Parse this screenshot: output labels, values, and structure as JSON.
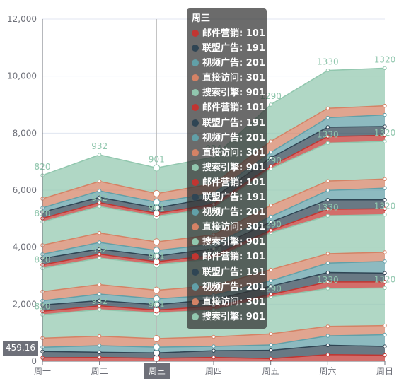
{
  "colors": [
    "#c23531",
    "#2f4554",
    "#61a0a8",
    "#d48265",
    "#91c7ae"
  ],
  "chart_data": {
    "type": "area",
    "stacked": true,
    "categories": [
      "周一",
      "周二",
      "周三",
      "周四",
      "周五",
      "周六",
      "周日"
    ],
    "ylim": [
      0,
      12000
    ],
    "yticks": [
      "0",
      "2,000",
      "4,000",
      "6,000",
      "8,000",
      "10,000",
      "12,000"
    ],
    "grid": "horizontal",
    "series": [
      {
        "name": "邮件营销",
        "color": "#c23531",
        "values": [
          120,
          132,
          101,
          134,
          90,
          230,
          210
        ]
      },
      {
        "name": "联盟广告",
        "color": "#2f4554",
        "values": [
          220,
          182,
          191,
          234,
          290,
          330,
          310
        ]
      },
      {
        "name": "视频广告",
        "color": "#61a0a8",
        "values": [
          150,
          232,
          201,
          154,
          190,
          330,
          410
        ]
      },
      {
        "name": "直接访问",
        "color": "#d48265",
        "values": [
          320,
          332,
          301,
          334,
          390,
          330,
          320
        ]
      },
      {
        "name": "搜索引擎",
        "color": "#91c7ae",
        "values": [
          820,
          932,
          901,
          934,
          1290,
          1330,
          1320
        ]
      },
      {
        "name": "邮件营销",
        "color": "#c23531",
        "values": [
          120,
          132,
          101,
          134,
          90,
          230,
          210
        ]
      },
      {
        "name": "联盟广告",
        "color": "#2f4554",
        "values": [
          220,
          182,
          191,
          234,
          290,
          330,
          310
        ]
      },
      {
        "name": "视频广告",
        "color": "#61a0a8",
        "values": [
          150,
          232,
          201,
          154,
          190,
          330,
          410
        ]
      },
      {
        "name": "直接访问",
        "color": "#d48265",
        "values": [
          320,
          332,
          301,
          334,
          390,
          330,
          320
        ]
      },
      {
        "name": "搜索引擎",
        "color": "#91c7ae",
        "values": [
          820,
          932,
          901,
          934,
          1290,
          1330,
          1320
        ]
      },
      {
        "name": "邮件营销",
        "color": "#c23531",
        "values": [
          120,
          132,
          101,
          134,
          90,
          230,
          210
        ]
      },
      {
        "name": "联盟广告",
        "color": "#2f4554",
        "values": [
          220,
          182,
          191,
          234,
          290,
          330,
          310
        ]
      },
      {
        "name": "视频广告",
        "color": "#61a0a8",
        "values": [
          150,
          232,
          201,
          154,
          190,
          330,
          410
        ]
      },
      {
        "name": "直接访问",
        "color": "#d48265",
        "values": [
          320,
          332,
          301,
          334,
          390,
          330,
          320
        ]
      },
      {
        "name": "搜索引擎",
        "color": "#91c7ae",
        "values": [
          820,
          932,
          901,
          934,
          1290,
          1330,
          1320
        ]
      },
      {
        "name": "邮件营销",
        "color": "#c23531",
        "values": [
          120,
          132,
          101,
          134,
          90,
          230,
          210
        ]
      },
      {
        "name": "联盟广告",
        "color": "#2f4554",
        "values": [
          220,
          182,
          191,
          234,
          290,
          330,
          310
        ]
      },
      {
        "name": "视频广告",
        "color": "#61a0a8",
        "values": [
          150,
          232,
          201,
          154,
          190,
          330,
          410
        ]
      },
      {
        "name": "直接访问",
        "color": "#d48265",
        "values": [
          320,
          332,
          301,
          334,
          390,
          330,
          320
        ]
      },
      {
        "name": "搜索引擎",
        "color": "#91c7ae",
        "values": [
          820,
          932,
          901,
          934,
          1290,
          1330,
          1320
        ]
      }
    ],
    "labeled_series_name": "搜索引擎",
    "hover_category": "周三",
    "axis_pointer_y_label": "459.16"
  },
  "tooltip": {
    "title": "周三",
    "rows": [
      {
        "text": "邮件营销: 101",
        "color": "#c23531"
      },
      {
        "text": "联盟广告: 191",
        "color": "#2f4554"
      },
      {
        "text": "视频广告: 201",
        "color": "#61a0a8"
      },
      {
        "text": "直接访问: 301",
        "color": "#d48265"
      },
      {
        "text": "搜索引擎: 901",
        "color": "#91c7ae"
      },
      {
        "text": "邮件营销: 101",
        "color": "#c23531"
      },
      {
        "text": "联盟广告: 191",
        "color": "#2f4554"
      },
      {
        "text": "视频广告: 201",
        "color": "#61a0a8"
      },
      {
        "text": "直接访问: 301",
        "color": "#d48265"
      },
      {
        "text": "搜索引擎: 901",
        "color": "#91c7ae"
      },
      {
        "text": "邮件营销: 101",
        "color": "#c23531"
      },
      {
        "text": "联盟广告: 191",
        "color": "#2f4554"
      },
      {
        "text": "视频广告: 201",
        "color": "#61a0a8"
      },
      {
        "text": "直接访问: 301",
        "color": "#d48265"
      },
      {
        "text": "搜索引擎: 901",
        "color": "#91c7ae"
      },
      {
        "text": "邮件营销: 101",
        "color": "#c23531"
      },
      {
        "text": "联盟广告: 191",
        "color": "#2f4554"
      },
      {
        "text": "视频广告: 201",
        "color": "#61a0a8"
      },
      {
        "text": "直接访问: 301",
        "color": "#d48265"
      },
      {
        "text": "搜索引擎: 901",
        "color": "#91c7ae"
      }
    ]
  }
}
